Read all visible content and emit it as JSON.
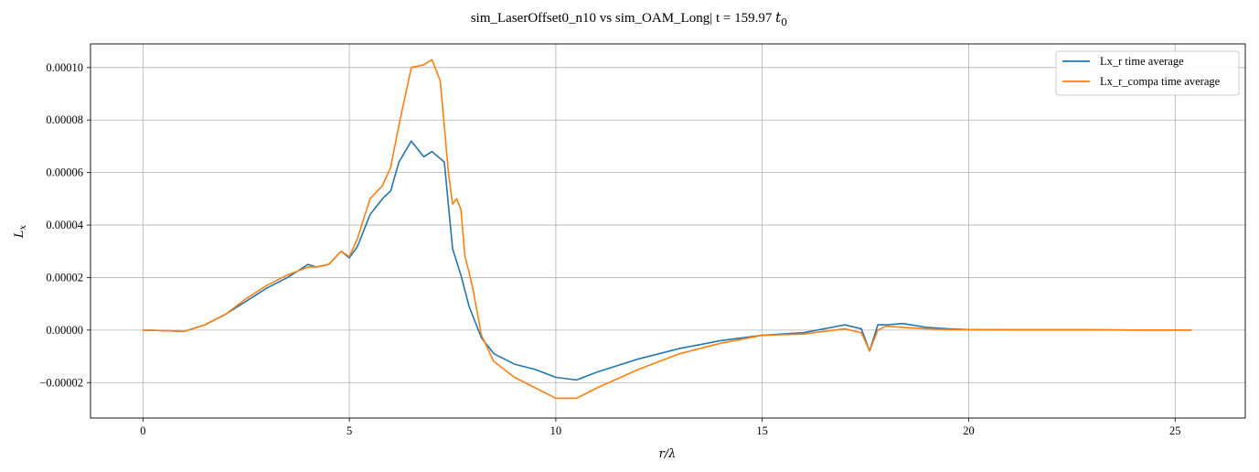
{
  "chart_data": {
    "type": "line",
    "title": "sim_LaserOffset0_n10 vs sim_OAM_Long| t = 159.97",
    "title_symbol": "t",
    "title_symbol_sub": "0",
    "xlabel": "r/λ",
    "ylabel": "L",
    "ylabel_sub": "x",
    "xlim": [
      -1.27,
      26.7
    ],
    "ylim": [
      -3.35e-05,
      0.000109
    ],
    "xticks": [
      0,
      5,
      10,
      15,
      20,
      25
    ],
    "xtick_labels": [
      "0",
      "5",
      "10",
      "15",
      "20",
      "25"
    ],
    "yticks": [
      -2e-05,
      0,
      2e-05,
      4e-05,
      6e-05,
      8e-05,
      0.0001
    ],
    "ytick_labels": [
      "−0.00002",
      "0.00000",
      "0.00002",
      "0.00004",
      "0.00006",
      "0.00008",
      "0.00010"
    ],
    "grid": true,
    "legend_position": "top-right",
    "series": [
      {
        "name": "Lx_r time average",
        "color": "#1f77b4",
        "x": [
          0,
          0.5,
          1.0,
          1.5,
          2.0,
          2.5,
          3.0,
          3.5,
          4.0,
          4.2,
          4.5,
          4.8,
          5.0,
          5.2,
          5.5,
          5.8,
          6.0,
          6.2,
          6.5,
          6.8,
          7.0,
          7.3,
          7.5,
          7.7,
          7.9,
          8.2,
          8.5,
          9.0,
          9.5,
          10.0,
          10.5,
          11.0,
          12.0,
          13.0,
          14.0,
          15.0,
          16.0,
          17.0,
          17.4,
          17.6,
          17.8,
          18.0,
          18.4,
          19.0,
          19.5,
          20.0,
          21.0,
          22.0,
          23.0,
          24.0,
          25.4
        ],
        "y": [
          0,
          -2e-07,
          -5e-07,
          2e-06,
          6e-06,
          1.1e-05,
          1.6e-05,
          2e-05,
          2.5e-05,
          2.4e-05,
          2.5e-05,
          3e-05,
          2.75e-05,
          3.2e-05,
          4.4e-05,
          5e-05,
          5.3e-05,
          6.4e-05,
          7.2e-05,
          6.6e-05,
          6.8e-05,
          6.4e-05,
          3.1e-05,
          2.1e-05,
          9e-06,
          -3e-06,
          -9e-06,
          -1.3e-05,
          -1.5e-05,
          -1.8e-05,
          -1.9e-05,
          -1.6e-05,
          -1.1e-05,
          -7e-06,
          -4e-06,
          -2e-06,
          -1e-06,
          2e-06,
          5e-07,
          -8e-06,
          2e-06,
          2e-06,
          2.5e-06,
          1e-06,
          5e-07,
          2e-07,
          1e-07,
          1e-07,
          1e-07,
          0,
          0
        ]
      },
      {
        "name": "Lx_r_compa time average",
        "color": "#ff7f0e",
        "x": [
          0,
          0.5,
          1.0,
          1.5,
          2.0,
          2.5,
          3.0,
          3.5,
          4.0,
          4.2,
          4.5,
          4.8,
          5.0,
          5.2,
          5.5,
          5.8,
          6.0,
          6.2,
          6.5,
          6.8,
          7.0,
          7.2,
          7.4,
          7.5,
          7.6,
          7.7,
          7.8,
          7.9,
          8.0,
          8.2,
          8.5,
          9.0,
          9.5,
          10.0,
          10.5,
          11.0,
          12.0,
          13.0,
          14.0,
          15.0,
          16.0,
          17.0,
          17.4,
          17.6,
          17.8,
          18.0,
          18.4,
          19.0,
          19.5,
          20.0,
          21.0,
          22.0,
          23.0,
          24.0,
          25.4
        ],
        "y": [
          0,
          -2e-07,
          -5e-07,
          2e-06,
          6e-06,
          1.2e-05,
          1.7e-05,
          2.1e-05,
          2.4e-05,
          2.4e-05,
          2.5e-05,
          3e-05,
          2.8e-05,
          3.5e-05,
          5e-05,
          5.5e-05,
          6.2e-05,
          7.8e-05,
          0.0001,
          0.000101,
          0.000103,
          9.5e-05,
          6e-05,
          4.8e-05,
          5e-05,
          4.6e-05,
          2.8e-05,
          2.2e-05,
          1.5e-05,
          -2e-06,
          -1.2e-05,
          -1.8e-05,
          -2.2e-05,
          -2.6e-05,
          -2.6e-05,
          -2.2e-05,
          -1.5e-05,
          -9e-06,
          -5e-06,
          -2e-06,
          -1.5e-06,
          5e-07,
          -1e-06,
          -8e-06,
          0,
          1.5e-06,
          1e-06,
          5e-07,
          2e-07,
          2e-07,
          1e-07,
          1e-07,
          1e-07,
          0,
          0
        ]
      }
    ]
  }
}
